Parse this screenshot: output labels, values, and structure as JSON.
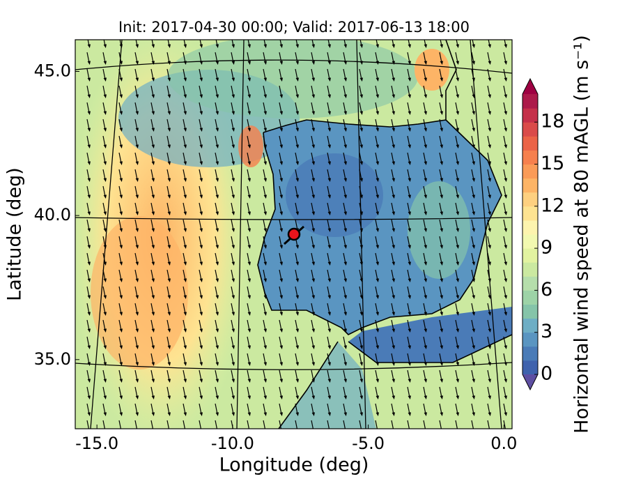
{
  "chart_data": {
    "type": "map",
    "title": "Init: 2017-04-30 00:00; Valid: 2017-06-13 18:00",
    "x_label": "Longitude (deg)",
    "y_label": "Latitude (deg)",
    "xlim": [
      -15.8,
      0.3
    ],
    "ylim": [
      32.6,
      46.1
    ],
    "xticks": [
      {
        "value": -15,
        "label": "-15.0"
      },
      {
        "value": -10,
        "label": "-10.0"
      },
      {
        "value": -5,
        "label": "-5.0"
      },
      {
        "value": 0,
        "label": "0.0"
      }
    ],
    "yticks": [
      {
        "value": 35,
        "label": "35.0"
      },
      {
        "value": 40,
        "label": "40.0"
      },
      {
        "value": 45,
        "label": "45.0"
      }
    ],
    "colorbar": {
      "label": "Horizontal wind speed at 80 mAGL (m s⁻¹)",
      "lim": [
        0,
        20
      ],
      "ticks": [
        0,
        3,
        6,
        9,
        12,
        15,
        18
      ],
      "colors": [
        "#3f62ad",
        "#4a7bb7",
        "#5a95c1",
        "#6eaec5",
        "#85c4a9",
        "#9dd3a7",
        "#b5deab",
        "#cbe9a0",
        "#e2f3a0",
        "#f2f9b0",
        "#fdf4ae",
        "#fee391",
        "#fed080",
        "#fdb466",
        "#fa9b58",
        "#f6804e",
        "#eb6347",
        "#da4b4a",
        "#c5304a",
        "#ac1a4a"
      ],
      "under_color": "#5e4fa2",
      "over_color": "#9e0142"
    }
  }
}
